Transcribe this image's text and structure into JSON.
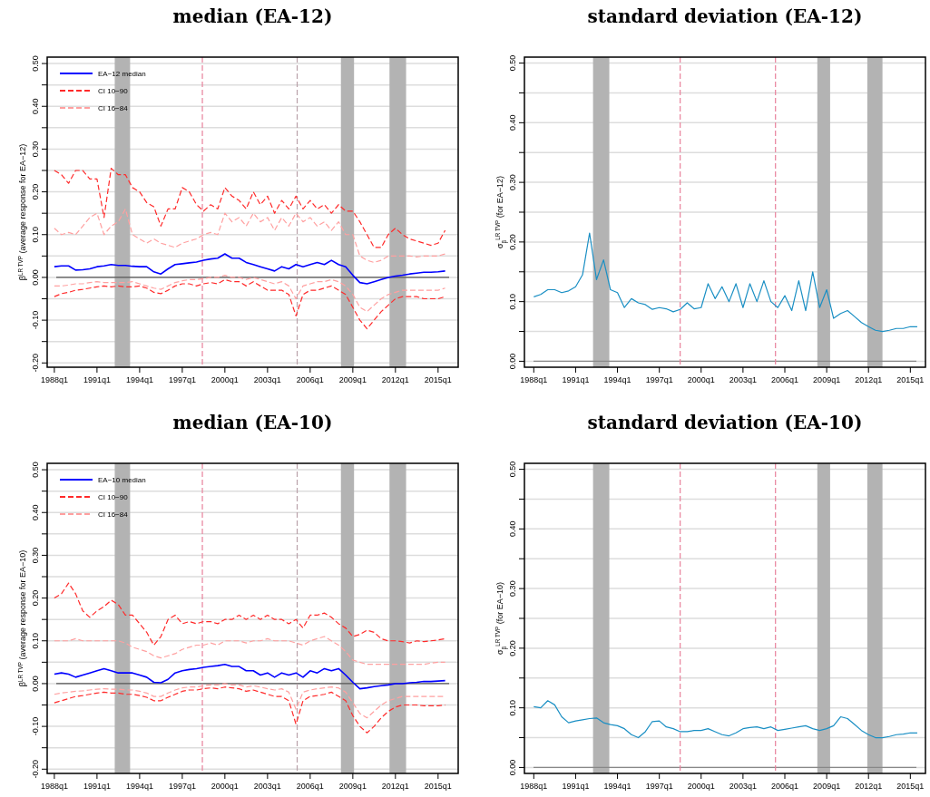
{
  "chart_data": [
    {
      "type": "line",
      "title": "median (EA-12)",
      "ylabel": "β$^{LR TVP}$ (average response for EA−12)",
      "legend": "top left",
      "grid": "y",
      "xlim": [
        "1987-07",
        "2016-06"
      ],
      "ylim": [
        -0.21,
        0.515
      ],
      "xticks": [
        {
          "value": "1988-01",
          "label": "1988q1"
        },
        {
          "value": "1991-01",
          "label": "1991q1"
        },
        {
          "value": "1994-01",
          "label": "1994q1"
        },
        {
          "value": "1997-01",
          "label": "1997q1"
        },
        {
          "value": "2000-01",
          "label": "2000q1"
        },
        {
          "value": "2003-01",
          "label": "2003q1"
        },
        {
          "value": "2006-01",
          "label": "2006q1"
        },
        {
          "value": "2009-01",
          "label": "2009q1"
        },
        {
          "value": "2012-01",
          "label": "2012q1"
        },
        {
          "value": "2015-01",
          "label": "2015q1"
        }
      ],
      "yticks": [
        {
          "value": -0.2,
          "label": "-0.20"
        },
        {
          "value": -0.15,
          "label": null
        },
        {
          "value": -0.1,
          "label": "-0.10"
        },
        {
          "value": -0.05,
          "label": null
        },
        {
          "value": 0,
          "label": "0.00"
        },
        {
          "value": 0.05,
          "label": null
        },
        {
          "value": 0.1,
          "label": "0.10"
        },
        {
          "value": 0.15,
          "label": null
        },
        {
          "value": 0.2,
          "label": "0.20"
        },
        {
          "value": 0.25,
          "label": null
        },
        {
          "value": 0.3,
          "label": "0.30"
        },
        {
          "value": 0.35,
          "label": null
        },
        {
          "value": 0.4,
          "label": "0.40"
        },
        {
          "value": 0.45,
          "label": null
        },
        {
          "value": 0.5,
          "label": "0.50"
        }
      ],
      "bands": [
        {
          "axis": "x",
          "from": "1992-04",
          "to": "1993-05",
          "color": "#b3b3b3"
        },
        {
          "axis": "x",
          "from": "2008-03",
          "to": "2009-02",
          "color": "#b3b3b3"
        },
        {
          "axis": "x",
          "from": "2011-08",
          "to": "2012-10",
          "color": "#b3b3b3"
        }
      ],
      "ref_lines": [
        {
          "axis": "y",
          "value": 0,
          "color": "#555555",
          "line_style": "solid"
        },
        {
          "axis": "x",
          "value": "1998-06",
          "color": "#e8819b",
          "line_style": "dashed"
        },
        {
          "axis": "x",
          "value": "2005-02",
          "color": "#b8a0a8",
          "line_style": "dashed"
        }
      ],
      "x": [
        "1988-01",
        "1988-07",
        "1989-01",
        "1989-07",
        "1990-01",
        "1990-07",
        "1991-01",
        "1991-07",
        "1992-01",
        "1992-07",
        "1993-01",
        "1993-07",
        "1994-01",
        "1994-07",
        "1995-01",
        "1995-07",
        "1996-01",
        "1996-07",
        "1997-01",
        "1997-07",
        "1998-01",
        "1998-07",
        "1999-01",
        "1999-07",
        "2000-01",
        "2000-07",
        "2001-01",
        "2001-07",
        "2002-01",
        "2002-07",
        "2003-01",
        "2003-07",
        "2004-01",
        "2004-07",
        "2005-01",
        "2005-07",
        "2006-01",
        "2006-07",
        "2007-01",
        "2007-07",
        "2008-01",
        "2008-07",
        "2009-01",
        "2009-07",
        "2010-01",
        "2010-07",
        "2011-01",
        "2011-07",
        "2012-01",
        "2012-07",
        "2013-01",
        "2013-07",
        "2014-01",
        "2014-07",
        "2015-01",
        "2015-07"
      ],
      "series": [
        {
          "name": "EA−12 median",
          "color": "#0000ff",
          "line_style": "solid",
          "values": [
            0.025,
            0.027,
            0.027,
            0.017,
            0.018,
            0.02,
            0.025,
            0.027,
            0.03,
            0.028,
            0.028,
            0.026,
            0.025,
            0.025,
            0.013,
            0.008,
            0.02,
            0.03,
            0.032,
            0.034,
            0.036,
            0.04,
            0.043,
            0.045,
            0.055,
            0.045,
            0.045,
            0.035,
            0.03,
            0.025,
            0.02,
            0.015,
            0.025,
            0.02,
            0.03,
            0.025,
            0.03,
            0.035,
            0.03,
            0.04,
            0.03,
            0.025,
            0.005,
            -0.012,
            -0.015,
            -0.01,
            -0.005,
            0,
            0.003,
            0.005,
            0.008,
            0.01,
            0.012,
            0.012,
            0.013,
            0.015
          ]
        },
        {
          "name": "CI 10−90",
          "color": "#ff2a2a",
          "line_style": "dashed",
          "values": [
            0.25,
            0.24,
            0.22,
            0.25,
            0.25,
            0.23,
            0.23,
            0.14,
            0.255,
            0.24,
            0.24,
            0.21,
            0.2,
            0.175,
            0.165,
            0.12,
            0.16,
            0.16,
            0.21,
            0.2,
            0.17,
            0.155,
            0.17,
            0.16,
            0.21,
            0.19,
            0.18,
            0.16,
            0.2,
            0.17,
            0.19,
            0.15,
            0.18,
            0.16,
            0.19,
            0.16,
            0.18,
            0.16,
            0.17,
            0.15,
            0.17,
            0.155,
            0.155,
            0.13,
            0.1,
            0.07,
            0.07,
            0.1,
            0.115,
            0.1,
            0.09,
            0.085,
            0.08,
            0.075,
            0.08,
            0.11
          ]
        },
        {
          "name": "CI 16−84",
          "color": "#ffa0a0",
          "line_style": "dashed",
          "values": [
            0.115,
            0.1,
            0.105,
            0.1,
            0.12,
            0.14,
            0.15,
            0.1,
            0.12,
            0.13,
            0.16,
            0.1,
            0.09,
            0.08,
            0.09,
            0.08,
            0.075,
            0.07,
            0.08,
            0.085,
            0.09,
            0.1,
            0.105,
            0.1,
            0.15,
            0.13,
            0.14,
            0.12,
            0.15,
            0.13,
            0.14,
            0.11,
            0.14,
            0.12,
            0.15,
            0.13,
            0.14,
            0.12,
            0.13,
            0.11,
            0.13,
            0.1,
            0.1,
            0.05,
            0.04,
            0.035,
            0.04,
            0.05,
            0.05,
            0.05,
            0.05,
            0.048,
            0.05,
            0.05,
            0.05,
            0.055
          ]
        },
        {
          "color": "#ff2a2a",
          "line_style": "dashed",
          "values": [
            -0.045,
            -0.038,
            -0.035,
            -0.03,
            -0.028,
            -0.025,
            -0.022,
            -0.02,
            -0.022,
            -0.02,
            -0.022,
            -0.022,
            -0.02,
            -0.025,
            -0.035,
            -0.038,
            -0.03,
            -0.02,
            -0.015,
            -0.015,
            -0.02,
            -0.015,
            -0.012,
            -0.015,
            -0.005,
            -0.01,
            -0.01,
            -0.02,
            -0.01,
            -0.02,
            -0.03,
            -0.03,
            -0.03,
            -0.04,
            -0.09,
            -0.04,
            -0.03,
            -0.03,
            -0.025,
            -0.02,
            -0.03,
            -0.04,
            -0.07,
            -0.1,
            -0.12,
            -0.1,
            -0.08,
            -0.065,
            -0.05,
            -0.045,
            -0.045,
            -0.045,
            -0.05,
            -0.05,
            -0.05,
            -0.045
          ]
        },
        {
          "color": "#ffa0a0",
          "line_style": "dashed",
          "values": [
            -0.02,
            -0.02,
            -0.018,
            -0.015,
            -0.015,
            -0.012,
            -0.01,
            -0.012,
            -0.012,
            -0.012,
            -0.012,
            -0.01,
            -0.015,
            -0.02,
            -0.025,
            -0.028,
            -0.02,
            -0.012,
            -0.008,
            -0.005,
            -0.005,
            -0.003,
            0,
            0,
            0.005,
            0,
            0,
            -0.005,
            0,
            -0.005,
            -0.01,
            -0.015,
            -0.01,
            -0.02,
            -0.05,
            -0.02,
            -0.015,
            -0.01,
            -0.01,
            -0.005,
            -0.01,
            -0.02,
            -0.04,
            -0.07,
            -0.08,
            -0.065,
            -0.05,
            -0.04,
            -0.035,
            -0.03,
            -0.03,
            -0.03,
            -0.03,
            -0.03,
            -0.03,
            -0.025
          ]
        }
      ]
    },
    {
      "type": "line",
      "title": "standard deviation (EA-12)",
      "ylabel": "σ$_{β}$$^{LR TVP}$ (for EA−12)",
      "grid": "y",
      "xlim": [
        "1987-05",
        "2016-02"
      ],
      "ylim": [
        -0.01,
        0.51
      ],
      "xticks": [
        {
          "value": "1988-01",
          "label": "1988q1"
        },
        {
          "value": "1991-01",
          "label": "1991q1"
        },
        {
          "value": "1994-01",
          "label": "1994q1"
        },
        {
          "value": "1997-01",
          "label": "1997q1"
        },
        {
          "value": "2000-01",
          "label": "2000q1"
        },
        {
          "value": "2003-01",
          "label": "2003q1"
        },
        {
          "value": "2006-01",
          "label": "2006q1"
        },
        {
          "value": "2009-01",
          "label": "2009q1"
        },
        {
          "value": "2012-01",
          "label": "2012q1"
        },
        {
          "value": "2015-01",
          "label": "2015q1"
        }
      ],
      "yticks": [
        {
          "value": 0,
          "label": "0.00"
        },
        {
          "value": 0.05,
          "label": null
        },
        {
          "value": 0.1,
          "label": "0.10"
        },
        {
          "value": 0.15,
          "label": null
        },
        {
          "value": 0.2,
          "label": "0.20"
        },
        {
          "value": 0.25,
          "label": null
        },
        {
          "value": 0.3,
          "label": "0.30"
        },
        {
          "value": 0.35,
          "label": null
        },
        {
          "value": 0.4,
          "label": "0.40"
        },
        {
          "value": 0.45,
          "label": null
        },
        {
          "value": 0.5,
          "label": "0.50"
        }
      ],
      "bands": [
        {
          "axis": "x",
          "from": "1992-04",
          "to": "1993-06",
          "color": "#b3b3b3"
        },
        {
          "axis": "x",
          "from": "2008-05",
          "to": "2009-04",
          "color": "#b3b3b3"
        },
        {
          "axis": "x",
          "from": "2011-12",
          "to": "2013-01",
          "color": "#b3b3b3"
        }
      ],
      "ref_lines": [
        {
          "axis": "y",
          "value": 0,
          "color": "#888888",
          "line_style": "solid"
        },
        {
          "axis": "x",
          "value": "1998-07",
          "color": "#e8819b",
          "line_style": "dashed"
        },
        {
          "axis": "x",
          "value": "2005-05",
          "color": "#e8819b",
          "line_style": "dashed"
        }
      ],
      "x": [
        "1988-01",
        "1988-07",
        "1989-01",
        "1989-07",
        "1990-01",
        "1990-07",
        "1991-01",
        "1991-07",
        "1992-01",
        "1992-07",
        "1993-01",
        "1993-07",
        "1994-01",
        "1994-07",
        "1995-01",
        "1995-07",
        "1996-01",
        "1996-07",
        "1997-01",
        "1997-07",
        "1998-01",
        "1998-07",
        "1999-01",
        "1999-07",
        "2000-01",
        "2000-07",
        "2001-01",
        "2001-07",
        "2002-01",
        "2002-07",
        "2003-01",
        "2003-07",
        "2004-01",
        "2004-07",
        "2005-01",
        "2005-07",
        "2006-01",
        "2006-07",
        "2007-01",
        "2007-07",
        "2008-01",
        "2008-07",
        "2009-01",
        "2009-07",
        "2010-01",
        "2010-07",
        "2011-01",
        "2011-07",
        "2012-01",
        "2012-07",
        "2013-01",
        "2013-07",
        "2014-01",
        "2014-07",
        "2015-01",
        "2015-07"
      ],
      "series": [
        {
          "color": "#1a8fc4",
          "line_style": "solid",
          "values": [
            0.108,
            0.112,
            0.12,
            0.12,
            0.115,
            0.118,
            0.125,
            0.145,
            0.215,
            0.137,
            0.17,
            0.12,
            0.115,
            0.09,
            0.105,
            0.098,
            0.095,
            0.087,
            0.09,
            0.088,
            0.083,
            0.087,
            0.098,
            0.088,
            0.09,
            0.13,
            0.105,
            0.125,
            0.1,
            0.13,
            0.09,
            0.13,
            0.1,
            0.135,
            0.1,
            0.09,
            0.11,
            0.085,
            0.135,
            0.085,
            0.15,
            0.09,
            0.12,
            0.072,
            0.08,
            0.085,
            0.075,
            0.065,
            0.058,
            0.052,
            0.05,
            0.052,
            0.055,
            0.055,
            0.058,
            0.058
          ]
        }
      ]
    },
    {
      "type": "line",
      "title": "median (EA-10)",
      "ylabel": "β$^{LR TVP}$ (average response for EA−10)",
      "legend": "top left",
      "grid": "y",
      "xlim": [
        "1987-07",
        "2016-06"
      ],
      "ylim": [
        -0.21,
        0.515
      ],
      "xticks": [
        {
          "value": "1988-01",
          "label": "1988q1"
        },
        {
          "value": "1991-01",
          "label": "1991q1"
        },
        {
          "value": "1994-01",
          "label": "1994q1"
        },
        {
          "value": "1997-01",
          "label": "1997q1"
        },
        {
          "value": "2000-01",
          "label": "2000q1"
        },
        {
          "value": "2003-01",
          "label": "2003q1"
        },
        {
          "value": "2006-01",
          "label": "2006q1"
        },
        {
          "value": "2009-01",
          "label": "2009q1"
        },
        {
          "value": "2012-01",
          "label": "2012q1"
        },
        {
          "value": "2015-01",
          "label": "2015q1"
        }
      ],
      "yticks": [
        {
          "value": -0.2,
          "label": "-0.20"
        },
        {
          "value": -0.15,
          "label": null
        },
        {
          "value": -0.1,
          "label": "-0.10"
        },
        {
          "value": -0.05,
          "label": null
        },
        {
          "value": 0,
          "label": "0.00"
        },
        {
          "value": 0.05,
          "label": null
        },
        {
          "value": 0.1,
          "label": "0.10"
        },
        {
          "value": 0.15,
          "label": null
        },
        {
          "value": 0.2,
          "label": "0.20"
        },
        {
          "value": 0.25,
          "label": null
        },
        {
          "value": 0.3,
          "label": "0.30"
        },
        {
          "value": 0.35,
          "label": null
        },
        {
          "value": 0.4,
          "label": "0.40"
        },
        {
          "value": 0.45,
          "label": null
        },
        {
          "value": 0.5,
          "label": "0.50"
        }
      ],
      "bands": [
        {
          "axis": "x",
          "from": "1992-04",
          "to": "1993-05",
          "color": "#b3b3b3"
        },
        {
          "axis": "x",
          "from": "2008-03",
          "to": "2009-02",
          "color": "#b3b3b3"
        },
        {
          "axis": "x",
          "from": "2011-08",
          "to": "2012-10",
          "color": "#b3b3b3"
        }
      ],
      "ref_lines": [
        {
          "axis": "y",
          "value": 0,
          "color": "#555555",
          "line_style": "solid"
        },
        {
          "axis": "x",
          "value": "1998-06",
          "color": "#e8819b",
          "line_style": "dashed"
        },
        {
          "axis": "x",
          "value": "2005-02",
          "color": "#b8a0a8",
          "line_style": "dashed"
        }
      ],
      "x": [
        "1988-01",
        "1988-07",
        "1989-01",
        "1989-07",
        "1990-01",
        "1990-07",
        "1991-01",
        "1991-07",
        "1992-01",
        "1992-07",
        "1993-01",
        "1993-07",
        "1994-01",
        "1994-07",
        "1995-01",
        "1995-07",
        "1996-01",
        "1996-07",
        "1997-01",
        "1997-07",
        "1998-01",
        "1998-07",
        "1999-01",
        "1999-07",
        "2000-01",
        "2000-07",
        "2001-01",
        "2001-07",
        "2002-01",
        "2002-07",
        "2003-01",
        "2003-07",
        "2004-01",
        "2004-07",
        "2005-01",
        "2005-07",
        "2006-01",
        "2006-07",
        "2007-01",
        "2007-07",
        "2008-01",
        "2008-07",
        "2009-01",
        "2009-07",
        "2010-01",
        "2010-07",
        "2011-01",
        "2011-07",
        "2012-01",
        "2012-07",
        "2013-01",
        "2013-07",
        "2014-01",
        "2014-07",
        "2015-01",
        "2015-07"
      ],
      "series": [
        {
          "name": "EA−10 median",
          "color": "#0000ff",
          "line_style": "solid",
          "values": [
            0.022,
            0.025,
            0.022,
            0.015,
            0.02,
            0.025,
            0.03,
            0.035,
            0.03,
            0.025,
            0.025,
            0.025,
            0.02,
            0.015,
            0.003,
            0.002,
            0.01,
            0.025,
            0.03,
            0.033,
            0.035,
            0.038,
            0.04,
            0.042,
            0.045,
            0.04,
            0.04,
            0.03,
            0.03,
            0.02,
            0.025,
            0.015,
            0.025,
            0.02,
            0.025,
            0.015,
            0.03,
            0.025,
            0.035,
            0.03,
            0.035,
            0.02,
            0.003,
            -0.012,
            -0.01,
            -0.007,
            -0.005,
            -0.003,
            0,
            0,
            0.002,
            0.003,
            0.005,
            0.005,
            0.006,
            0.007
          ]
        },
        {
          "name": "CI 10−90",
          "color": "#ff2a2a",
          "line_style": "dashed",
          "values": [
            0.2,
            0.21,
            0.235,
            0.21,
            0.17,
            0.155,
            0.17,
            0.18,
            0.195,
            0.185,
            0.16,
            0.16,
            0.14,
            0.12,
            0.09,
            0.11,
            0.15,
            0.16,
            0.14,
            0.145,
            0.14,
            0.145,
            0.145,
            0.14,
            0.15,
            0.15,
            0.16,
            0.15,
            0.16,
            0.15,
            0.16,
            0.15,
            0.15,
            0.14,
            0.15,
            0.13,
            0.16,
            0.16,
            0.165,
            0.155,
            0.14,
            0.13,
            0.11,
            0.115,
            0.125,
            0.12,
            0.105,
            0.1,
            0.1,
            0.098,
            0.095,
            0.1,
            0.098,
            0.1,
            0.102,
            0.105
          ]
        },
        {
          "name": "CI 16−84",
          "color": "#ffa0a0",
          "line_style": "dashed",
          "values": [
            0.1,
            0.1,
            0.1,
            0.105,
            0.1,
            0.1,
            0.1,
            0.1,
            0.1,
            0.1,
            0.095,
            0.085,
            0.08,
            0.075,
            0.065,
            0.06,
            0.065,
            0.07,
            0.08,
            0.085,
            0.09,
            0.09,
            0.095,
            0.09,
            0.1,
            0.1,
            0.1,
            0.095,
            0.1,
            0.1,
            0.105,
            0.1,
            0.1,
            0.1,
            0.095,
            0.09,
            0.1,
            0.105,
            0.11,
            0.1,
            0.09,
            0.075,
            0.055,
            0.05,
            0.045,
            0.045,
            0.045,
            0.045,
            0.045,
            0.045,
            0.045,
            0.045,
            0.045,
            0.048,
            0.05,
            0.05
          ]
        },
        {
          "color": "#ff2a2a",
          "line_style": "dashed",
          "values": [
            -0.045,
            -0.04,
            -0.035,
            -0.03,
            -0.028,
            -0.025,
            -0.022,
            -0.02,
            -0.022,
            -0.022,
            -0.025,
            -0.025,
            -0.028,
            -0.032,
            -0.04,
            -0.04,
            -0.032,
            -0.025,
            -0.018,
            -0.015,
            -0.015,
            -0.012,
            -0.01,
            -0.012,
            -0.008,
            -0.01,
            -0.012,
            -0.018,
            -0.015,
            -0.02,
            -0.025,
            -0.03,
            -0.03,
            -0.04,
            -0.095,
            -0.04,
            -0.03,
            -0.028,
            -0.025,
            -0.02,
            -0.03,
            -0.04,
            -0.075,
            -0.1,
            -0.115,
            -0.1,
            -0.08,
            -0.065,
            -0.055,
            -0.05,
            -0.05,
            -0.05,
            -0.052,
            -0.052,
            -0.052,
            -0.05
          ]
        },
        {
          "color": "#ffa0a0",
          "line_style": "dashed",
          "values": [
            -0.025,
            -0.022,
            -0.02,
            -0.018,
            -0.017,
            -0.015,
            -0.013,
            -0.012,
            -0.013,
            -0.013,
            -0.015,
            -0.015,
            -0.018,
            -0.022,
            -0.03,
            -0.03,
            -0.022,
            -0.015,
            -0.01,
            -0.008,
            -0.008,
            -0.005,
            -0.003,
            -0.003,
            0,
            -0.003,
            -0.003,
            -0.008,
            -0.005,
            -0.008,
            -0.012,
            -0.015,
            -0.012,
            -0.02,
            -0.06,
            -0.02,
            -0.015,
            -0.012,
            -0.01,
            -0.008,
            -0.01,
            -0.02,
            -0.045,
            -0.07,
            -0.08,
            -0.065,
            -0.05,
            -0.04,
            -0.035,
            -0.03,
            -0.03,
            -0.03,
            -0.03,
            -0.03,
            -0.03,
            -0.03
          ]
        }
      ]
    },
    {
      "type": "line",
      "title": "standard deviation (EA-10)",
      "ylabel": "σ$_{β}$$^{LR TVP}$ (for EA−10)",
      "grid": "y",
      "xlim": [
        "1987-05",
        "2016-02"
      ],
      "ylim": [
        -0.01,
        0.51
      ],
      "xticks": [
        {
          "value": "1988-01",
          "label": "1988q1"
        },
        {
          "value": "1991-01",
          "label": "1991q1"
        },
        {
          "value": "1994-01",
          "label": "1994q1"
        },
        {
          "value": "1997-01",
          "label": "1997q1"
        },
        {
          "value": "2000-01",
          "label": "2000q1"
        },
        {
          "value": "2003-01",
          "label": "2003q1"
        },
        {
          "value": "2006-01",
          "label": "2006q1"
        },
        {
          "value": "2009-01",
          "label": "2009q1"
        },
        {
          "value": "2012-01",
          "label": "2012q1"
        },
        {
          "value": "2015-01",
          "label": "2015q1"
        }
      ],
      "yticks": [
        {
          "value": 0,
          "label": "0.00"
        },
        {
          "value": 0.05,
          "label": null
        },
        {
          "value": 0.1,
          "label": "0.10"
        },
        {
          "value": 0.15,
          "label": null
        },
        {
          "value": 0.2,
          "label": "0.20"
        },
        {
          "value": 0.25,
          "label": null
        },
        {
          "value": 0.3,
          "label": "0.30"
        },
        {
          "value": 0.35,
          "label": null
        },
        {
          "value": 0.4,
          "label": "0.40"
        },
        {
          "value": 0.45,
          "label": null
        },
        {
          "value": 0.5,
          "label": "0.50"
        }
      ],
      "bands": [
        {
          "axis": "x",
          "from": "1992-04",
          "to": "1993-06",
          "color": "#b3b3b3"
        },
        {
          "axis": "x",
          "from": "2008-05",
          "to": "2009-04",
          "color": "#b3b3b3"
        },
        {
          "axis": "x",
          "from": "2011-12",
          "to": "2013-01",
          "color": "#b3b3b3"
        }
      ],
      "ref_lines": [
        {
          "axis": "y",
          "value": 0,
          "color": "#888888",
          "line_style": "solid"
        },
        {
          "axis": "x",
          "value": "1998-07",
          "color": "#e8819b",
          "line_style": "dashed"
        },
        {
          "axis": "x",
          "value": "2005-05",
          "color": "#e8819b",
          "line_style": "dashed"
        }
      ],
      "x": [
        "1988-01",
        "1988-07",
        "1989-01",
        "1989-07",
        "1990-01",
        "1990-07",
        "1991-01",
        "1991-07",
        "1992-01",
        "1992-07",
        "1993-01",
        "1993-07",
        "1994-01",
        "1994-07",
        "1995-01",
        "1995-07",
        "1996-01",
        "1996-07",
        "1997-01",
        "1997-07",
        "1998-01",
        "1998-07",
        "1999-01",
        "1999-07",
        "2000-01",
        "2000-07",
        "2001-01",
        "2001-07",
        "2002-01",
        "2002-07",
        "2003-01",
        "2003-07",
        "2004-01",
        "2004-07",
        "2005-01",
        "2005-07",
        "2006-01",
        "2006-07",
        "2007-01",
        "2007-07",
        "2008-01",
        "2008-07",
        "2009-01",
        "2009-07",
        "2010-01",
        "2010-07",
        "2011-01",
        "2011-07",
        "2012-01",
        "2012-07",
        "2013-01",
        "2013-07",
        "2014-01",
        "2014-07",
        "2015-01",
        "2015-07"
      ],
      "series": [
        {
          "color": "#1a8fc4",
          "line_style": "solid",
          "values": [
            0.102,
            0.1,
            0.112,
            0.105,
            0.085,
            0.075,
            0.078,
            0.08,
            0.082,
            0.083,
            0.075,
            0.072,
            0.07,
            0.065,
            0.055,
            0.05,
            0.06,
            0.077,
            0.078,
            0.068,
            0.065,
            0.06,
            0.06,
            0.062,
            0.062,
            0.065,
            0.06,
            0.055,
            0.053,
            0.058,
            0.065,
            0.067,
            0.068,
            0.065,
            0.068,
            0.062,
            0.064,
            0.066,
            0.068,
            0.07,
            0.065,
            0.062,
            0.065,
            0.07,
            0.085,
            0.082,
            0.072,
            0.062,
            0.055,
            0.05,
            0.05,
            0.052,
            0.055,
            0.056,
            0.058,
            0.058
          ]
        }
      ]
    }
  ]
}
